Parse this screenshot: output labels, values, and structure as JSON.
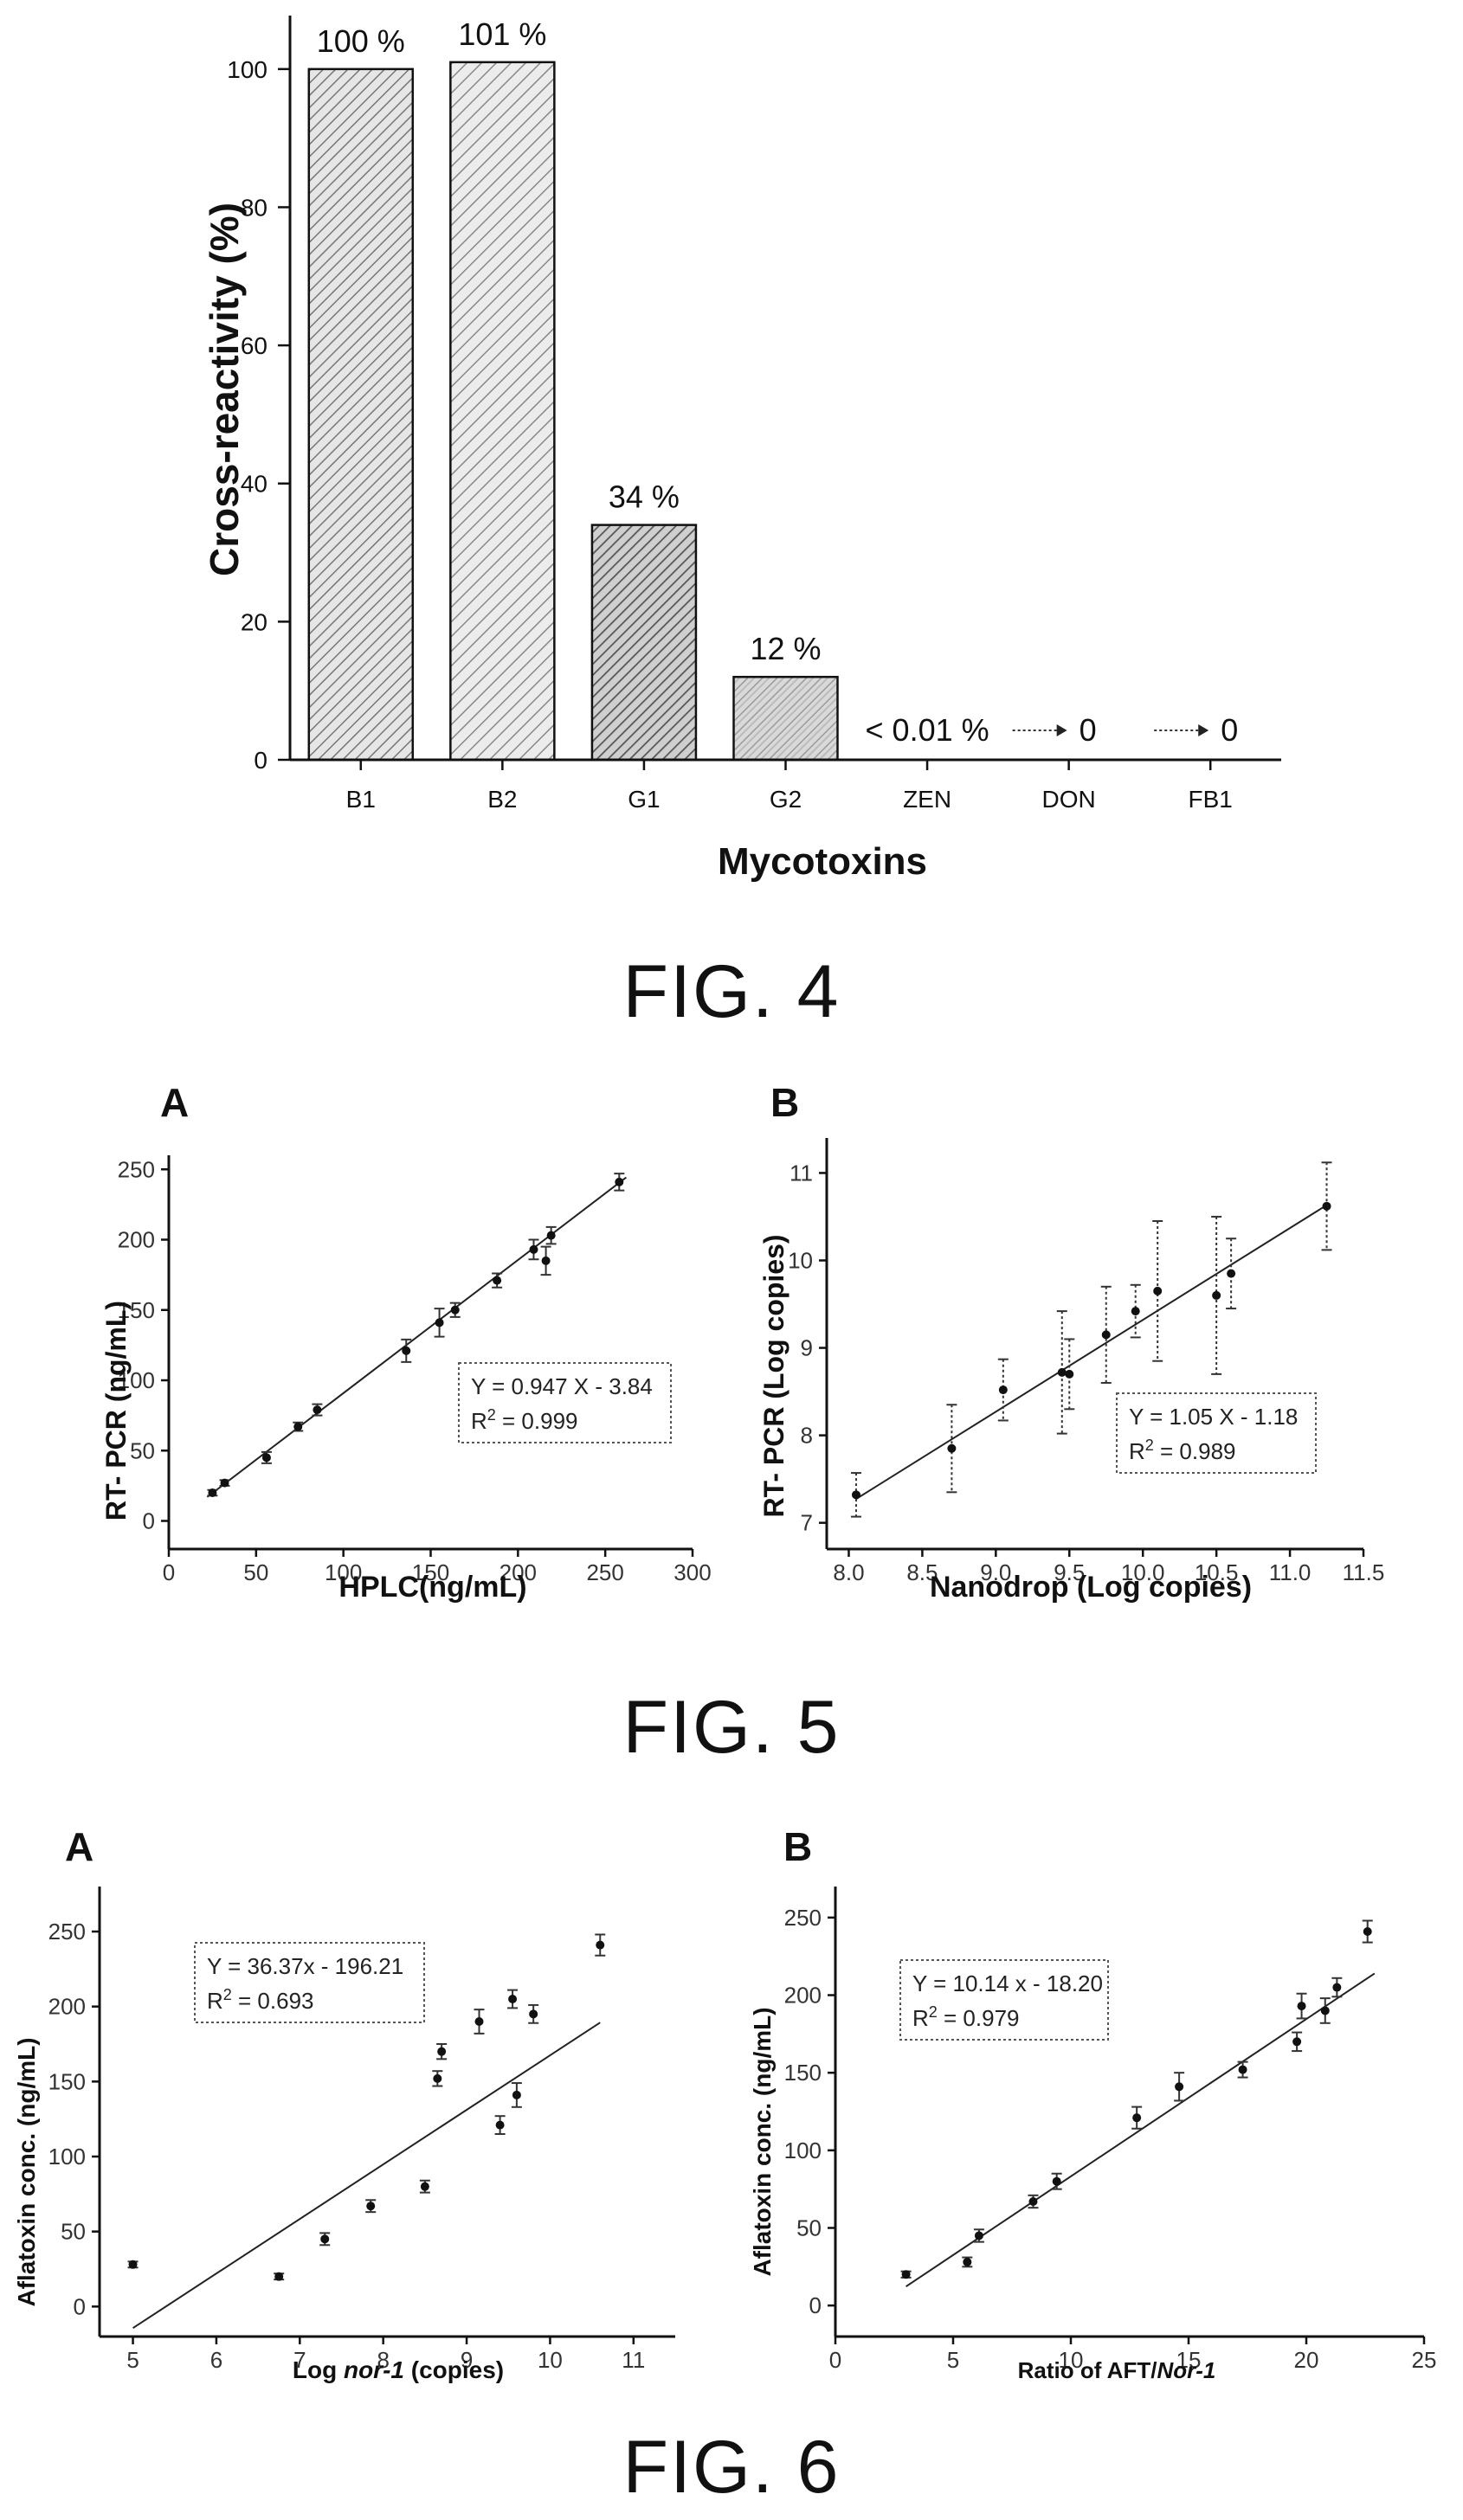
{
  "chart_data": [
    {
      "id": "fig4",
      "type": "bar",
      "caption": "FIG. 4",
      "title": "",
      "xlabel": "Mycotoxins",
      "ylabel": "Cross-reactivity (%)",
      "ylim": [
        0,
        110
      ],
      "yticks": [
        0,
        20,
        40,
        60,
        80,
        100
      ],
      "categories": [
        "B1",
        "B2",
        "G1",
        "G2",
        "ZEN",
        "DON",
        "FB1"
      ],
      "values": [
        100,
        101,
        34,
        12,
        0.01,
        0,
        0
      ],
      "bar_labels": [
        "100 %",
        "101 %",
        "34 %",
        "12 %",
        "< 0.01 %",
        "0",
        "0"
      ],
      "bar_colors": [
        "#e6e6e6",
        "#ececec",
        "#cfcfcf",
        "#d9d9d9"
      ]
    },
    {
      "id": "fig5a",
      "type": "scatter",
      "caption": "FIG. 5",
      "panel": "A",
      "xlabel": "HPLC(ng/mL)",
      "ylabel": "RT- PCR (ng/mL)",
      "xlim": [
        0,
        300
      ],
      "ylim": [
        -20,
        260
      ],
      "xticks": [
        0,
        50,
        100,
        150,
        200,
        250,
        300
      ],
      "yticks": [
        0,
        50,
        100,
        150,
        200,
        250
      ],
      "equation": "Y = 0.947 X - 3.84",
      "r2_label": "R",
      "r2_value": " = 0.999",
      "fit": {
        "slope": 0.947,
        "intercept": -3.84
      },
      "points": [
        {
          "x": 25,
          "y": 20,
          "e": 2
        },
        {
          "x": 32,
          "y": 27,
          "e": 2
        },
        {
          "x": 56,
          "y": 45,
          "e": 4
        },
        {
          "x": 74,
          "y": 67,
          "e": 3
        },
        {
          "x": 85,
          "y": 79,
          "e": 4
        },
        {
          "x": 136,
          "y": 121,
          "e": 8
        },
        {
          "x": 155,
          "y": 141,
          "e": 10
        },
        {
          "x": 164,
          "y": 150,
          "e": 5
        },
        {
          "x": 188,
          "y": 171,
          "e": 5
        },
        {
          "x": 209,
          "y": 193,
          "e": 7
        },
        {
          "x": 216,
          "y": 185,
          "e": 10
        },
        {
          "x": 219,
          "y": 203,
          "e": 6
        },
        {
          "x": 258,
          "y": 241,
          "e": 6
        }
      ]
    },
    {
      "id": "fig5b",
      "type": "scatter",
      "panel": "B",
      "xlabel": "Nanodrop (Log copies)",
      "ylabel": "RT- PCR (Log copies)",
      "xlim": [
        7.85,
        11.5
      ],
      "ylim": [
        6.7,
        11.4
      ],
      "xticks": [
        8.0,
        8.5,
        9.0,
        9.5,
        10.0,
        10.5,
        11.0,
        11.5
      ],
      "xtick_labels": [
        "8.0",
        "8.5",
        "9.0",
        "9.5",
        "10.0",
        "10.5",
        "11.0",
        "11.5"
      ],
      "yticks": [
        7,
        8,
        9,
        10,
        11
      ],
      "equation": "Y = 1.05 X - 1.18",
      "r2_label": "R",
      "r2_value": " = 0.989",
      "fit": {
        "slope": 1.05,
        "intercept": -1.18
      },
      "points": [
        {
          "x": 8.05,
          "y": 7.32,
          "e": 0.25
        },
        {
          "x": 8.7,
          "y": 7.85,
          "e": 0.5
        },
        {
          "x": 9.05,
          "y": 8.52,
          "e": 0.35
        },
        {
          "x": 9.45,
          "y": 8.72,
          "e": 0.7
        },
        {
          "x": 9.5,
          "y": 8.7,
          "e": 0.4
        },
        {
          "x": 9.75,
          "y": 9.15,
          "e": 0.55
        },
        {
          "x": 9.95,
          "y": 9.42,
          "e": 0.3
        },
        {
          "x": 10.1,
          "y": 9.65,
          "e": 0.8
        },
        {
          "x": 10.5,
          "y": 9.6,
          "e": 0.9
        },
        {
          "x": 10.6,
          "y": 9.85,
          "e": 0.4
        },
        {
          "x": 11.25,
          "y": 10.62,
          "e": 0.5
        }
      ]
    },
    {
      "id": "fig6a",
      "type": "scatter",
      "caption": "FIG. 6",
      "panel": "A",
      "xlabel_prefix": "Log ",
      "xlabel_italic": "nor-1",
      "xlabel_suffix": " (copies)",
      "ylabel": "Aflatoxin conc. (ng/mL)",
      "xlim": [
        4.6,
        11.5
      ],
      "ylim": [
        -20,
        280
      ],
      "xticks": [
        5,
        6,
        7,
        8,
        9,
        10,
        11
      ],
      "yticks": [
        0,
        50,
        100,
        150,
        200,
        250
      ],
      "equation": "Y = 36.37x - 196.21",
      "r2_label": "R",
      "r2_value": " = 0.693",
      "fit": {
        "slope": 36.37,
        "intercept": -196.21
      },
      "points": [
        {
          "x": 5.0,
          "y": 28,
          "e": 2
        },
        {
          "x": 6.75,
          "y": 20,
          "e": 2
        },
        {
          "x": 7.3,
          "y": 45,
          "e": 4
        },
        {
          "x": 7.85,
          "y": 67,
          "e": 4
        },
        {
          "x": 8.5,
          "y": 80,
          "e": 4
        },
        {
          "x": 8.65,
          "y": 152,
          "e": 5
        },
        {
          "x": 8.7,
          "y": 170,
          "e": 5
        },
        {
          "x": 9.15,
          "y": 190,
          "e": 8
        },
        {
          "x": 9.4,
          "y": 121,
          "e": 6
        },
        {
          "x": 9.55,
          "y": 205,
          "e": 6
        },
        {
          "x": 9.6,
          "y": 141,
          "e": 8
        },
        {
          "x": 9.8,
          "y": 195,
          "e": 6
        },
        {
          "x": 10.6,
          "y": 241,
          "e": 7
        }
      ]
    },
    {
      "id": "fig6b",
      "type": "scatter",
      "panel": "B",
      "xlabel_prefix": "Ratio of AFT/",
      "xlabel_italic": "Nor-1",
      "xlabel_suffix": "",
      "ylabel": "Aflatoxin conc. (ng/mL)",
      "xlim": [
        0,
        25
      ],
      "ylim": [
        -20,
        270
      ],
      "xticks": [
        0,
        5,
        10,
        15,
        20,
        25
      ],
      "yticks": [
        0,
        50,
        100,
        150,
        200,
        250
      ],
      "equation": "Y = 10.14 x - 18.20",
      "r2_label": "R",
      "r2_value": " = 0.979",
      "fit": {
        "slope": 10.14,
        "intercept": -18.2
      },
      "points": [
        {
          "x": 3.0,
          "y": 20,
          "e": 2
        },
        {
          "x": 5.6,
          "y": 28,
          "e": 3
        },
        {
          "x": 6.1,
          "y": 45,
          "e": 4
        },
        {
          "x": 8.4,
          "y": 67,
          "e": 4
        },
        {
          "x": 9.4,
          "y": 80,
          "e": 5
        },
        {
          "x": 12.8,
          "y": 121,
          "e": 7
        },
        {
          "x": 14.6,
          "y": 141,
          "e": 9
        },
        {
          "x": 17.3,
          "y": 152,
          "e": 5
        },
        {
          "x": 19.6,
          "y": 170,
          "e": 6
        },
        {
          "x": 19.8,
          "y": 193,
          "e": 8
        },
        {
          "x": 20.8,
          "y": 190,
          "e": 8
        },
        {
          "x": 21.3,
          "y": 205,
          "e": 6
        },
        {
          "x": 22.6,
          "y": 241,
          "e": 7
        }
      ]
    }
  ]
}
